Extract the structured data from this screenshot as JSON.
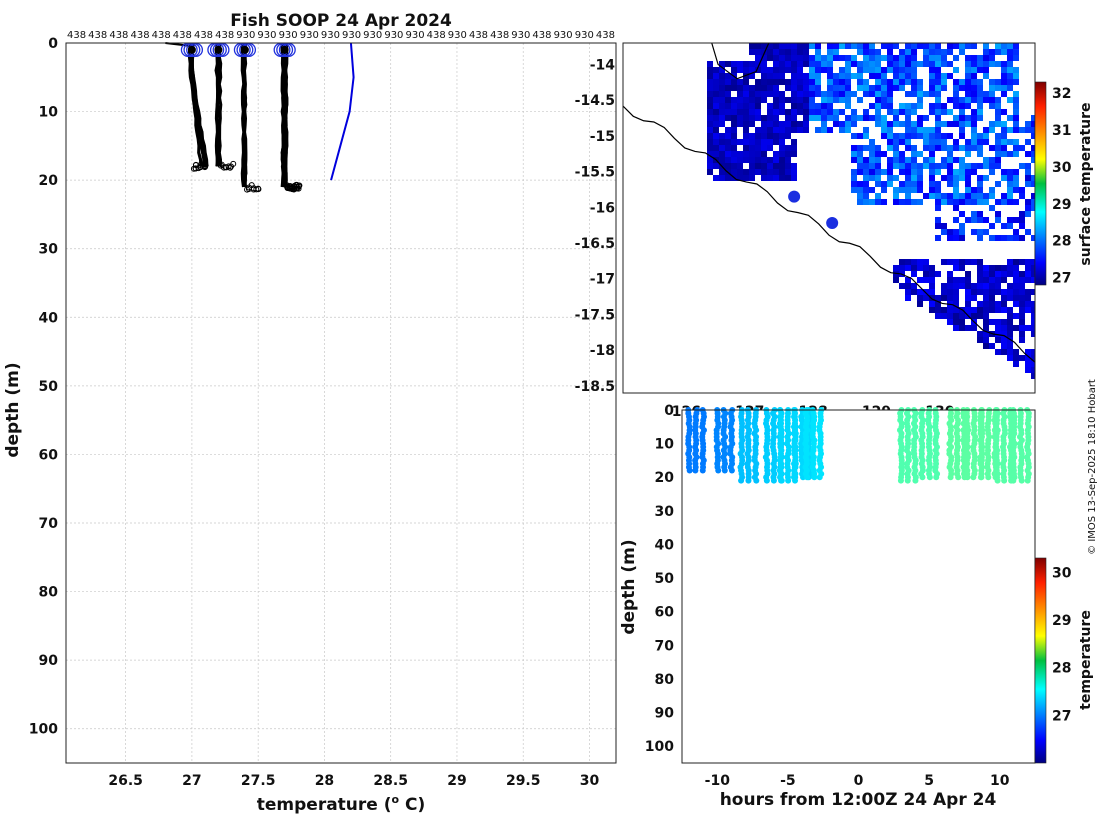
{
  "chart_data": [
    {
      "type": "line",
      "panel": "profile",
      "title": "Fish SOOP 24 Apr 2024",
      "xlabel": "temperature (",
      "xlabel_sup": "o",
      "xlabel_tail": " C)",
      "ylabel": "depth (m)",
      "xlim": [
        26.05,
        30.2
      ],
      "ylim": [
        105,
        0
      ],
      "xticks": [
        26.5,
        27,
        27.5,
        28,
        28.5,
        29,
        29.5,
        30
      ],
      "yticks": [
        0,
        10,
        20,
        30,
        40,
        50,
        60,
        70,
        80,
        90,
        100
      ],
      "top_ids": [
        "438",
        "438",
        "438",
        "438",
        "438",
        "438",
        "438",
        "438",
        "930",
        "930",
        "930",
        "930",
        "930",
        "930",
        "930",
        "930",
        "930",
        "438",
        "930",
        "438",
        "438",
        "930",
        "438",
        "930",
        "930",
        "438"
      ],
      "clusters": [
        {
          "temp": 27.0,
          "bottom_depth": 18,
          "count": 5
        },
        {
          "temp": 27.2,
          "bottom_depth": 18,
          "count": 3
        },
        {
          "temp": 27.4,
          "bottom_depth": 21,
          "count": 3
        },
        {
          "temp": 27.7,
          "bottom_depth": 21,
          "count": 9
        }
      ],
      "climatology": {
        "name": "climatology",
        "color": "#0000dd",
        "temps": [
          28.2,
          28.22,
          28.19,
          28.05
        ],
        "depths": [
          0,
          5,
          10,
          20
        ]
      },
      "surface_line": {
        "temps": [
          26.8,
          27.02
        ],
        "depths": [
          0,
          0.5
        ]
      }
    },
    {
      "type": "heatmap",
      "panel": "map",
      "xlim": [
        125,
        131.5
      ],
      "ylim": [
        -18.6,
        -13.7
      ],
      "yticks": [
        -14,
        -14.5,
        -15,
        -15.5,
        -16,
        -16.5,
        -17,
        -17.5,
        -18,
        -18.5
      ],
      "xticks": [
        126,
        127,
        128,
        129,
        130
      ],
      "xticks_partial_label": [
        "126",
        "127",
        "128",
        "129",
        "130"
      ],
      "colorbar": {
        "label": "surface temperature",
        "ticks": [
          27,
          28,
          29,
          30,
          31,
          32
        ],
        "range": [
          26.8,
          32.3
        ]
      },
      "markers": [
        {
          "lon": 127.7,
          "lat": -15.85
        },
        {
          "lon": 128.3,
          "lat": -16.22
        }
      ]
    },
    {
      "type": "scatter",
      "panel": "time_section",
      "xlabel": "hours from 12:00Z 24 Apr 24",
      "ylabel": "depth (m)",
      "xlim": [
        -12.5,
        12.5
      ],
      "ylim": [
        105,
        0
      ],
      "xticks": [
        -10,
        -5,
        0,
        5,
        10
      ],
      "yticks": [
        0,
        10,
        20,
        30,
        40,
        50,
        60,
        70,
        80,
        90,
        100
      ],
      "columns": [
        {
          "hour": -11.5,
          "bottom_depth": 18,
          "temp": 27.05
        },
        {
          "hour": -9.5,
          "bottom_depth": 18,
          "temp": 27.1
        },
        {
          "hour": -7.8,
          "bottom_depth": 21,
          "temp": 27.35
        },
        {
          "hour": -6.0,
          "bottom_depth": 21,
          "temp": 27.4
        },
        {
          "hour": -5.0,
          "bottom_depth": 21,
          "temp": 27.45
        },
        {
          "hour": -4.0,
          "bottom_depth": 20,
          "temp": 27.45
        },
        {
          "hour": -3.2,
          "bottom_depth": 20,
          "temp": 27.5
        },
        {
          "hour": 3.5,
          "bottom_depth": 21,
          "temp": 27.95
        },
        {
          "hour": 5.0,
          "bottom_depth": 20,
          "temp": 27.95
        },
        {
          "hour": 7.0,
          "bottom_depth": 20,
          "temp": 28.0
        },
        {
          "hour": 8.2,
          "bottom_depth": 20,
          "temp": 28.0
        },
        {
          "hour": 9.2,
          "bottom_depth": 20,
          "temp": 28.0
        },
        {
          "hour": 10.3,
          "bottom_depth": 21,
          "temp": 27.98
        },
        {
          "hour": 11.5,
          "bottom_depth": 21,
          "temp": 27.98
        }
      ],
      "colorbar": {
        "label": "temperature",
        "ticks": [
          27,
          28,
          29,
          30
        ],
        "range": [
          26.0,
          30.3
        ]
      }
    }
  ],
  "watermark": "© IMOS 13-Sep-2025 18:10 Hobart"
}
